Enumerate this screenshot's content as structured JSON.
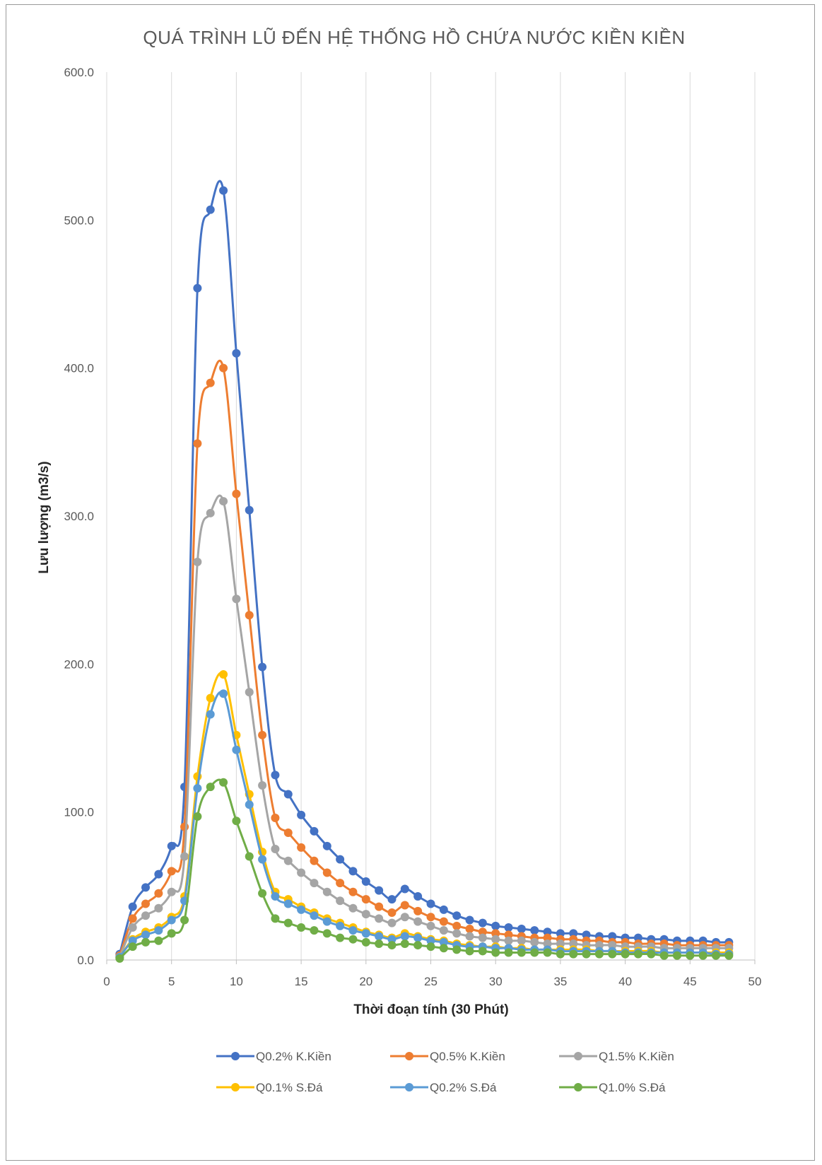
{
  "chart_data": {
    "type": "line",
    "title": "QUÁ TRÌNH LŨ ĐẾN HỆ THỐNG HỒ CHỨA NƯỚC KIỀN KIỀN",
    "xlabel": "Thời đoạn tính (30 Phút)",
    "ylabel": "Lưu lượng (m3/s)",
    "xlim": [
      0,
      50
    ],
    "ylim": [
      0,
      600
    ],
    "xticks": [
      "0",
      "5",
      "10",
      "15",
      "20",
      "25",
      "30",
      "35",
      "40",
      "45",
      "50"
    ],
    "yticks": [
      "0.0",
      "100.0",
      "200.0",
      "300.0",
      "400.0",
      "500.0",
      "600.0"
    ],
    "grid": "vertical",
    "legend": "bottom",
    "x": [
      1,
      2,
      3,
      4,
      5,
      6,
      7,
      8,
      9,
      10,
      11,
      12,
      13,
      14,
      15,
      16,
      17,
      18,
      19,
      20,
      21,
      22,
      23,
      24,
      25,
      26,
      27,
      28,
      29,
      30,
      31,
      32,
      33,
      34,
      35,
      36,
      37,
      38,
      39,
      40,
      41,
      42,
      43,
      44,
      45,
      46,
      47,
      48
    ],
    "series": [
      {
        "name": "Q0.2% K.Kiền",
        "color": "#4472C4",
        "values": [
          4,
          36,
          49,
          58,
          77,
          117,
          454,
          507,
          520,
          410,
          304,
          198,
          125,
          112,
          98,
          87,
          77,
          68,
          60,
          53,
          47,
          41,
          48,
          43,
          38,
          34,
          30,
          27,
          25,
          23,
          22,
          21,
          20,
          19,
          18,
          18,
          17,
          16,
          16,
          15,
          15,
          14,
          14,
          13,
          13,
          13,
          12,
          12
        ]
      },
      {
        "name": "Q0.5%  K.Kiền",
        "color": "#ED7D31",
        "values": [
          3,
          28,
          38,
          45,
          60,
          90,
          349,
          390,
          400,
          315,
          233,
          152,
          96,
          86,
          76,
          67,
          59,
          52,
          46,
          41,
          36,
          32,
          37,
          33,
          29,
          26,
          23,
          21,
          19,
          18,
          17,
          16,
          15,
          15,
          14,
          14,
          13,
          13,
          12,
          12,
          11,
          11,
          11,
          10,
          10,
          10,
          10,
          10
        ]
      },
      {
        "name": "Q1.5%  K.Kiền",
        "color": "#A5A5A5",
        "values": [
          2,
          22,
          30,
          35,
          46,
          70,
          269,
          302,
          310,
          244,
          181,
          118,
          75,
          67,
          59,
          52,
          46,
          40,
          35,
          31,
          28,
          25,
          29,
          26,
          23,
          20,
          18,
          16,
          15,
          14,
          13,
          13,
          12,
          11,
          11,
          11,
          10,
          10,
          10,
          9,
          9,
          9,
          8,
          8,
          8,
          8,
          8,
          8
        ]
      },
      {
        "name": "Q0.1% S.Đá",
        "color": "#FFC000",
        "values": [
          2,
          14,
          19,
          22,
          29,
          43,
          124,
          177,
          193,
          152,
          112,
          73,
          46,
          41,
          36,
          32,
          28,
          25,
          22,
          19,
          17,
          15,
          18,
          16,
          14,
          13,
          11,
          10,
          9,
          9,
          8,
          8,
          7,
          7,
          7,
          7,
          7,
          6,
          6,
          6,
          6,
          6,
          5,
          5,
          5,
          5,
          5,
          5
        ]
      },
      {
        "name": "Q0.2%  S.Đá",
        "color": "#5B9BD5",
        "values": [
          2,
          13,
          17,
          20,
          27,
          40,
          116,
          166,
          180,
          142,
          105,
          68,
          43,
          38,
          34,
          30,
          26,
          23,
          20,
          18,
          16,
          14,
          16,
          15,
          13,
          12,
          10,
          9,
          9,
          8,
          8,
          7,
          7,
          7,
          6,
          6,
          6,
          6,
          6,
          5,
          5,
          5,
          5,
          5,
          5,
          5,
          4,
          4
        ]
      },
      {
        "name": "Q1.0%  S.Đá",
        "color": "#70AD47",
        "values": [
          1,
          9,
          12,
          13,
          18,
          27,
          97,
          117,
          120,
          94,
          70,
          45,
          28,
          25,
          22,
          20,
          18,
          15,
          14,
          12,
          11,
          10,
          11,
          10,
          9,
          8,
          7,
          6,
          6,
          5,
          5,
          5,
          5,
          5,
          4,
          4,
          4,
          4,
          4,
          4,
          4,
          4,
          3,
          3,
          3,
          3,
          3,
          3
        ]
      }
    ]
  }
}
